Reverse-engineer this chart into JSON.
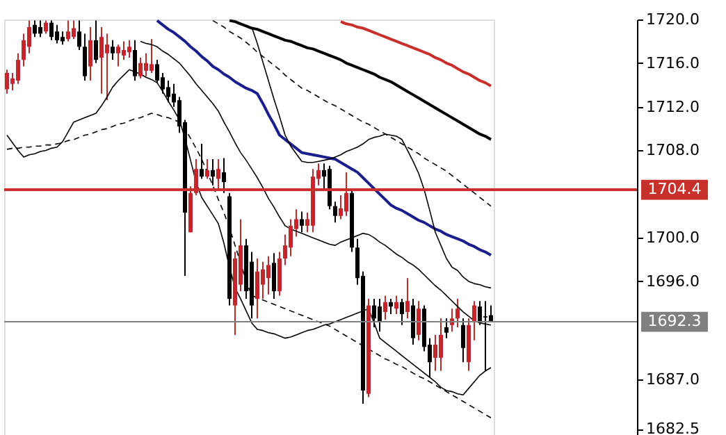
{
  "chart_data": {
    "type": "candlestick",
    "categories": [
      null,
      null,
      null,
      null,
      null,
      null,
      null,
      null,
      null,
      null,
      null,
      null,
      null,
      null,
      null,
      null,
      null,
      null,
      null,
      null,
      null,
      null,
      null,
      null,
      null,
      null,
      null,
      null,
      null,
      null,
      null,
      null,
      null,
      null,
      null,
      null,
      null,
      null,
      null,
      null,
      null,
      null,
      null,
      null,
      null,
      null,
      null,
      null,
      null,
      null,
      null,
      null,
      null,
      null,
      null,
      null,
      null,
      null,
      null,
      null,
      null,
      null,
      null,
      null,
      null,
      null,
      null,
      null,
      null,
      null,
      null,
      null,
      null,
      null,
      null,
      null,
      null,
      null,
      null,
      null,
      null,
      null,
      null,
      null,
      null,
      null,
      null,
      null
    ],
    "ohlc": [
      [
        1713.6,
        1715.4,
        1713.2,
        1715.1
      ],
      [
        1714.1,
        1715.1,
        1713.5,
        1714.6
      ],
      [
        1714.4,
        1716.9,
        1714.1,
        1716.3
      ],
      [
        1716.3,
        1718.7,
        1715.7,
        1718.1
      ],
      [
        1717.5,
        1719.9,
        1716.9,
        1719.3
      ],
      [
        1719.5,
        1719.9,
        1718.4,
        1718.7
      ],
      [
        1719.3,
        1719.9,
        1718.4,
        1718.7
      ],
      [
        1718.9,
        1719.9,
        1718.7,
        1719.7
      ],
      [
        1719.7,
        1719.9,
        1718.1,
        1718.4
      ],
      [
        1718.9,
        1719.5,
        1717.8,
        1718.1
      ],
      [
        1718.4,
        1718.9,
        1717.7,
        1718.0
      ],
      [
        1718.2,
        1719.9,
        1718.0,
        1718.9
      ],
      [
        1718.4,
        1719.9,
        1718.2,
        1719.2
      ],
      [
        1718.9,
        1719.9,
        1717.2,
        1717.5
      ],
      [
        1717.5,
        1718.7,
        1714.4,
        1714.8
      ],
      [
        1715.7,
        1719.3,
        1714.4,
        1718.1
      ],
      [
        1718.1,
        1719.9,
        1716.0,
        1716.3
      ],
      [
        1716.5,
        1719.3,
        1713.2,
        1718.4
      ],
      [
        1716.9,
        1718.7,
        1712.6,
        1717.7
      ],
      [
        1717.5,
        1718.1,
        1716.3,
        1716.9
      ],
      [
        1716.9,
        1717.7,
        1715.7,
        1717.5
      ],
      [
        1716.7,
        1718.0,
        1716.3,
        1717.2
      ],
      [
        1717.0,
        1718.1,
        1716.5,
        1717.5
      ],
      [
        1717.2,
        1718.1,
        1714.4,
        1714.8
      ],
      [
        1714.8,
        1716.5,
        1714.6,
        1716.0
      ],
      [
        1715.3,
        1716.9,
        1714.8,
        1716.0
      ],
      [
        1715.3,
        1718.2,
        1715.1,
        1715.9
      ],
      [
        1715.9,
        1716.3,
        1714.2,
        1714.4
      ],
      [
        1714.7,
        1715.1,
        1713.2,
        1713.6
      ],
      [
        1713.8,
        1714.4,
        1712.4,
        1712.9
      ],
      [
        1713.2,
        1714.1,
        1712.0,
        1712.4
      ],
      [
        1712.6,
        1712.9,
        1709.6,
        1710.2
      ],
      [
        1710.6,
        1710.8,
        1696.5,
        1702.3
      ],
      [
        1700.5,
        1704.7,
        1700.5,
        1704.1
      ],
      [
        1704.1,
        1707.2,
        1703.9,
        1706.3
      ],
      [
        1706.3,
        1708.6,
        1705.4,
        1705.6
      ],
      [
        1705.6,
        1707.2,
        1705.4,
        1706.2
      ],
      [
        1706.2,
        1707.2,
        1704.8,
        1705.6
      ],
      [
        1705.4,
        1707.2,
        1704.4,
        1706.3
      ],
      [
        1706.0,
        1707.3,
        1704.1,
        1705.1
      ],
      [
        1703.8,
        1704.1,
        1693.8,
        1694.4
      ],
      [
        1693.8,
        1698.7,
        1691.1,
        1698.1
      ],
      [
        1695.7,
        1701.7,
        1695.1,
        1699.3
      ],
      [
        1699.3,
        1699.9,
        1694.4,
        1695.1
      ],
      [
        1697.8,
        1698.7,
        1692.6,
        1693.8
      ],
      [
        1694.4,
        1698.1,
        1692.6,
        1696.9
      ],
      [
        1695.7,
        1697.8,
        1694.4,
        1697.1
      ],
      [
        1696.3,
        1698.3,
        1694.8,
        1697.5
      ],
      [
        1697.7,
        1698.6,
        1694.4,
        1695.1
      ],
      [
        1695.1,
        1698.7,
        1694.7,
        1698.1
      ],
      [
        1698.1,
        1700.3,
        1697.5,
        1699.3
      ],
      [
        1699.1,
        1701.7,
        1698.3,
        1701.1
      ],
      [
        1700.8,
        1702.6,
        1700.1,
        1701.7
      ],
      [
        1701.7,
        1702.4,
        1700.5,
        1701.1
      ],
      [
        1701.1,
        1702.3,
        1700.5,
        1701.7
      ],
      [
        1701.1,
        1706.3,
        1700.5,
        1705.6
      ],
      [
        1705.4,
        1706.8,
        1704.8,
        1706.2
      ],
      [
        1706.2,
        1706.8,
        1704.5,
        1705.6
      ],
      [
        1706.3,
        1706.6,
        1702.6,
        1702.9
      ],
      [
        1702.9,
        1703.3,
        1701.4,
        1702.0
      ],
      [
        1702.0,
        1703.9,
        1701.7,
        1702.7
      ],
      [
        1702.4,
        1706.0,
        1702.0,
        1704.1
      ],
      [
        1704.1,
        1704.4,
        1698.7,
        1699.1
      ],
      [
        1699.1,
        1699.9,
        1695.7,
        1696.3
      ],
      [
        1696.5,
        1696.9,
        1684.8,
        1686.0
      ],
      [
        1685.7,
        1694.4,
        1685.4,
        1693.8
      ],
      [
        1693.8,
        1694.4,
        1691.8,
        1692.6
      ],
      [
        1693.7,
        1694.4,
        1691.4,
        1692.3
      ],
      [
        1693.2,
        1694.7,
        1692.5,
        1694.1
      ],
      [
        1694.1,
        1694.4,
        1693.0,
        1693.7
      ],
      [
        1693.5,
        1694.7,
        1693.0,
        1694.1
      ],
      [
        1694.1,
        1694.4,
        1692.0,
        1693.0
      ],
      [
        1693.2,
        1696.3,
        1692.6,
        1694.2
      ],
      [
        1693.8,
        1694.4,
        1690.2,
        1690.8
      ],
      [
        1691.1,
        1694.2,
        1690.6,
        1693.5
      ],
      [
        1693.5,
        1693.8,
        1689.6,
        1690.0
      ],
      [
        1690.2,
        1690.8,
        1687.2,
        1688.6
      ],
      [
        1689.0,
        1691.1,
        1687.8,
        1690.2
      ],
      [
        1689.0,
        1692.6,
        1687.8,
        1691.1
      ],
      [
        1691.8,
        1692.6,
        1690.8,
        1691.3
      ],
      [
        1692.0,
        1693.5,
        1691.4,
        1692.6
      ],
      [
        1692.6,
        1694.4,
        1691.8,
        1693.5
      ],
      [
        1692.0,
        1692.6,
        1688.6,
        1689.9
      ],
      [
        1688.6,
        1692.6,
        1687.8,
        1692.0
      ],
      [
        1692.3,
        1694.2,
        1690.6,
        1693.8
      ],
      [
        1693.7,
        1694.2,
        1692.0,
        1692.3
      ],
      [
        1692.8,
        1694.2,
        1687.8,
        1692.7
      ],
      [
        1692.9,
        1693.8,
        1692.3,
        1692.3
      ]
    ],
    "colors": [
      "#c0282d",
      "#c0282d",
      "#c0282d",
      "#c0282d",
      "#c0282d",
      "#000000",
      "#000000",
      "#c0282d",
      "#000000",
      "#000000",
      "#000000",
      "#c0282d",
      "#c0282d",
      "#000000",
      "#000000",
      "#c0282d",
      "#000000",
      "#c0282d",
      "#c0282d",
      "#000000",
      "#c0282d",
      "#c0282d",
      "#c0282d",
      "#000000",
      "#c0282d",
      "#c0282d",
      "#c0282d",
      "#000000",
      "#000000",
      "#000000",
      "#000000",
      "#000000",
      "#000000",
      "#c0282d",
      "#c0282d",
      "#000000",
      "#c0282d",
      "#000000",
      "#c0282d",
      "#000000",
      "#000000",
      "#c0282d",
      "#c0282d",
      "#000000",
      "#000000",
      "#c0282d",
      "#c0282d",
      "#c0282d",
      "#000000",
      "#c0282d",
      "#c0282d",
      "#c0282d",
      "#c0282d",
      "#000000",
      "#c0282d",
      "#c0282d",
      "#c0282d",
      "#000000",
      "#000000",
      "#000000",
      "#c0282d",
      "#c0282d",
      "#000000",
      "#000000",
      "#000000",
      "#c0282d",
      "#000000",
      "#000000",
      "#c0282d",
      "#000000",
      "#c0282d",
      "#000000",
      "#c0282d",
      "#000000",
      "#c0282d",
      "#000000",
      "#000000",
      "#c0282d",
      "#c0282d",
      "#000000",
      "#c0282d",
      "#c0282d",
      "#000000",
      "#c0282d",
      "#c0282d",
      "#000000",
      "#000000",
      "#000000"
    ],
    "series": [
      {
        "type": "line",
        "color": "#c8302c",
        "line_style": "solid",
        "values": [
          null,
          null,
          null,
          null,
          null,
          null,
          null,
          null,
          null,
          null,
          null,
          null,
          null,
          null,
          null,
          null,
          null,
          null,
          null,
          null,
          null,
          null,
          null,
          null,
          null,
          null,
          null,
          null,
          null,
          null,
          null,
          null,
          null,
          null,
          null,
          null,
          null,
          null,
          null,
          null,
          null,
          null,
          null,
          null,
          null,
          null,
          null,
          null,
          null,
          null,
          null,
          null,
          null,
          null,
          null,
          null,
          null,
          null,
          null,
          null,
          1719.8,
          1719.6,
          1719.5,
          1719.3,
          1719.2,
          1719.0,
          1718.8,
          1718.6,
          1718.4,
          1718.2,
          1718.0,
          1717.8,
          1717.6,
          1717.4,
          1717.2,
          1717.0,
          1716.8,
          1716.5,
          1716.3,
          1716.0,
          1715.8,
          1715.5,
          1715.2,
          1715.0,
          1714.7,
          1714.4,
          1714.2,
          1713.9
        ]
      },
      {
        "type": "line",
        "color": "#000000",
        "line_style": "solid",
        "values": [
          null,
          null,
          null,
          null,
          null,
          null,
          null,
          null,
          null,
          null,
          null,
          null,
          null,
          null,
          null,
          null,
          null,
          null,
          null,
          null,
          null,
          null,
          null,
          null,
          null,
          null,
          null,
          null,
          null,
          null,
          null,
          null,
          null,
          null,
          null,
          null,
          null,
          null,
          null,
          null,
          1719.9,
          1719.8,
          1719.6,
          1719.4,
          1719.2,
          1719.1,
          1718.9,
          1718.7,
          1718.5,
          1718.3,
          1718.1,
          1718.0,
          1717.8,
          1717.6,
          1717.4,
          1717.3,
          1717.1,
          1716.9,
          1716.7,
          1716.5,
          1716.3,
          1716.0,
          1715.8,
          1715.6,
          1715.4,
          1715.2,
          1715.0,
          1714.7,
          1714.5,
          1714.3,
          1714.0,
          1713.7,
          1713.4,
          1713.1,
          1712.8,
          1712.5,
          1712.2,
          1711.9,
          1711.6,
          1711.3,
          1711.0,
          1710.7,
          1710.4,
          1710.1,
          1709.8,
          1709.5,
          1709.3,
          1709.0
        ]
      },
      {
        "type": "line",
        "color": "#1a1f8c",
        "line_style": "solid",
        "values": [
          null,
          null,
          null,
          null,
          null,
          null,
          null,
          null,
          null,
          null,
          null,
          null,
          null,
          null,
          null,
          null,
          null,
          null,
          null,
          null,
          null,
          null,
          null,
          null,
          null,
          null,
          null,
          1719.9,
          1719.5,
          1719.1,
          1718.8,
          1718.4,
          1718.0,
          1717.5,
          1717.1,
          1716.6,
          1716.2,
          1715.7,
          1715.4,
          1715.0,
          1714.7,
          1714.3,
          1714.0,
          1713.7,
          1713.5,
          1713.2,
          1712.3,
          1711.3,
          1710.4,
          1709.4,
          1709.0,
          1708.6,
          1708.2,
          1707.8,
          1707.7,
          1707.6,
          1707.5,
          1707.4,
          1707.3,
          1707.2,
          1706.9,
          1706.6,
          1706.3,
          1706.0,
          1705.5,
          1705.0,
          1704.5,
          1704.0,
          1703.5,
          1703.0,
          1702.7,
          1702.5,
          1702.2,
          1701.9,
          1701.6,
          1701.4,
          1701.1,
          1700.8,
          1700.6,
          1700.3,
          1700.1,
          1699.9,
          1699.7,
          1699.4,
          1699.2,
          1698.9,
          1698.7,
          1698.4
        ]
      },
      {
        "type": "line",
        "color": "#000000",
        "line_style": "solid",
        "values": [
          null,
          null,
          null,
          null,
          null,
          null,
          null,
          null,
          null,
          null,
          null,
          null,
          null,
          null,
          null,
          null,
          null,
          null,
          null,
          null,
          null,
          null,
          null,
          null,
          null,
          null,
          null,
          null,
          null,
          null,
          null,
          null,
          null,
          null,
          null,
          null,
          null,
          null,
          null,
          null,
          null,
          null,
          null,
          null,
          1719.3,
          1717.8,
          1716.1,
          1714.4,
          1712.7,
          1711.1,
          1709.4,
          1708.4,
          1707.7,
          1707.0,
          1706.9,
          1706.9,
          1707.0,
          1707.1,
          1707.2,
          1707.4,
          1707.6,
          1707.9,
          1708.1,
          1708.3,
          1708.6,
          1709.0,
          1709.2,
          1709.3,
          1709.5,
          1709.4,
          1709.3,
          1709.0,
          1708.0,
          1707.0,
          1705.9,
          1704.4,
          1702.5,
          1700.5,
          1699.3,
          1698.1,
          1697.3,
          1697.0,
          1696.4,
          1696.0,
          1695.8,
          1695.7,
          1695.5,
          1695.4
        ]
      },
      {
        "type": "line",
        "color": "#000000",
        "line_style": "solid",
        "values": [
          null,
          null,
          null,
          null,
          null,
          null,
          null,
          null,
          null,
          null,
          null,
          null,
          null,
          null,
          null,
          null,
          null,
          null,
          null,
          null,
          null,
          null,
          null,
          null,
          1718.0,
          1717.8,
          1717.7,
          1717.5,
          1717.1,
          1716.8,
          1716.4,
          1716.0,
          1715.4,
          1714.8,
          1714.1,
          1713.5,
          1712.9,
          1712.3,
          1711.6,
          1710.6,
          1709.7,
          1708.7,
          1707.8,
          1707.1,
          1706.3,
          1705.5,
          1704.6,
          1703.6,
          1702.8,
          1701.9,
          1701.1,
          1700.8,
          1700.6,
          1700.4,
          1700.2,
          1700.0,
          1699.8,
          1699.6,
          1699.4,
          1699.3,
          1699.6,
          1699.8,
          1700.0,
          1700.2,
          1700.4,
          1700.3,
          1700.0,
          1699.6,
          1699.3,
          1698.9,
          1698.5,
          1698.2,
          1697.8,
          1697.5,
          1697.1,
          1696.6,
          1696.1,
          1695.6,
          1695.2,
          1694.7,
          1694.2,
          1693.7,
          1693.2,
          1692.8,
          1692.4,
          1692.2,
          1692.1,
          1692.0
        ]
      },
      {
        "type": "line",
        "color": "#000000",
        "line_style": "solid",
        "values": [
          1709.4,
          1708.7,
          1708.0,
          1707.4,
          1707.6,
          1707.7,
          1707.9,
          1708.0,
          1708.2,
          1708.3,
          1708.8,
          1709.7,
          1710.6,
          1710.8,
          1711.0,
          1711.2,
          1711.4,
          1712.1,
          1712.9,
          1713.8,
          1714.4,
          1714.9,
          1715.4,
          1715.2,
          1715.0,
          1714.7,
          1714.5,
          1714.2,
          1713.4,
          1712.5,
          1711.7,
          1710.8,
          1709.1,
          1707.1,
          1705.1,
          1703.7,
          1702.9,
          1702.1,
          1701.3,
          1699.5,
          1697.3,
          1695.4,
          1694.4,
          1693.3,
          1692.2,
          1691.6,
          1691.5,
          1691.3,
          1691.2,
          1691.0,
          1690.8,
          1690.9,
          1691.1,
          1691.3,
          1691.5,
          1691.6,
          1691.8,
          1692.0,
          1692.1,
          1692.3,
          1692.5,
          1692.7,
          1692.9,
          1693.1,
          1693.3,
          1693.5,
          1692.2,
          1690.8,
          1690.4,
          1690.0,
          1689.6,
          1689.2,
          1688.8,
          1688.4,
          1688.0,
          1687.6,
          1687.2,
          1686.8,
          1686.3,
          1686.0,
          1685.9,
          1685.7,
          1685.6,
          1686.2,
          1686.8,
          1687.4,
          1687.8,
          1688.1
        ]
      },
      {
        "type": "line",
        "color": "#000000",
        "line_style": "dashed",
        "values": [
          null,
          null,
          null,
          null,
          null,
          null,
          null,
          null,
          null,
          null,
          null,
          null,
          null,
          null,
          null,
          null,
          null,
          null,
          null,
          null,
          null,
          null,
          null,
          null,
          null,
          null,
          null,
          null,
          null,
          null,
          null,
          null,
          null,
          null,
          null,
          null,
          null,
          1719.9,
          1719.6,
          1719.3,
          1718.9,
          1718.6,
          1718.3,
          1717.9,
          1717.5,
          1717.0,
          1716.6,
          1716.2,
          1715.8,
          1715.4,
          1714.9,
          1714.5,
          1714.1,
          1713.7,
          1713.5,
          1713.2,
          1712.9,
          1712.6,
          1712.3,
          1712.1,
          1711.8,
          1711.5,
          1711.2,
          1710.9,
          1710.6,
          1710.4,
          1710.1,
          1709.8,
          1709.5,
          1709.2,
          1708.9,
          1708.6,
          1708.3,
          1708.0,
          1707.7,
          1707.3,
          1707.0,
          1706.7,
          1706.4,
          1706.1,
          1705.7,
          1705.3,
          1704.9,
          1704.5,
          1704.1,
          1703.7,
          1703.3,
          1702.9
        ]
      },
      {
        "type": "line",
        "color": "#000000",
        "line_style": "dashed",
        "values": [
          1708.1,
          1708.2,
          1708.2,
          1708.3,
          1708.3,
          1708.4,
          1708.4,
          1708.5,
          1708.5,
          1708.6,
          1708.7,
          1708.9,
          1709.0,
          1709.2,
          1709.4,
          1709.5,
          1709.7,
          1709.9,
          1710.0,
          1710.2,
          1710.4,
          1710.5,
          1710.7,
          1710.9,
          1711.0,
          1711.2,
          1711.4,
          1711.3,
          1711.1,
          1711.0,
          1710.8,
          1710.6,
          1710.0,
          1709.1,
          1708.2,
          1707.2,
          1706.0,
          1704.8,
          1703.5,
          1702.3,
          1700.9,
          1699.3,
          1697.7,
          1696.0,
          1694.7,
          1694.5,
          1694.3,
          1694.1,
          1693.9,
          1693.7,
          1693.5,
          1693.3,
          1693.1,
          1692.9,
          1692.7,
          1692.5,
          1692.3,
          1692.1,
          1691.9,
          1691.6,
          1691.3,
          1691.0,
          1690.7,
          1690.4,
          1690.1,
          1689.8,
          1689.5,
          1689.2,
          1688.9,
          1688.7,
          1688.4,
          1688.2,
          1687.9,
          1687.6,
          1687.3,
          1687.1,
          1686.8,
          1686.5,
          1686.2,
          1685.9,
          1685.6,
          1685.3,
          1685.0,
          1684.7,
          1684.4,
          1684.1,
          1683.8,
          1683.5
        ]
      }
    ],
    "ref_lines": [
      {
        "axis": "y",
        "value": 1704.4,
        "label": "1704.4",
        "color": "#c8302c"
      },
      {
        "axis": "y",
        "value": 1692.3,
        "label": "1692.3",
        "color": "#808080"
      }
    ],
    "ylim": [
      1681.8,
      1720.0
    ],
    "yticks": [
      {
        "value": 1720.0,
        "label": "1720.0"
      },
      {
        "value": 1716.0,
        "label": "1716.0"
      },
      {
        "value": 1712.0,
        "label": "1712.0"
      },
      {
        "value": 1708.0,
        "label": "1708.0"
      },
      {
        "value": 1700.0,
        "label": "1700.0"
      },
      {
        "value": 1696.0,
        "label": "1696.0"
      },
      {
        "value": 1687.0,
        "label": "1687.0"
      },
      {
        "value": 1682.5,
        "label": "1682.5"
      }
    ],
    "tick_labels": "y",
    "grid": false
  }
}
